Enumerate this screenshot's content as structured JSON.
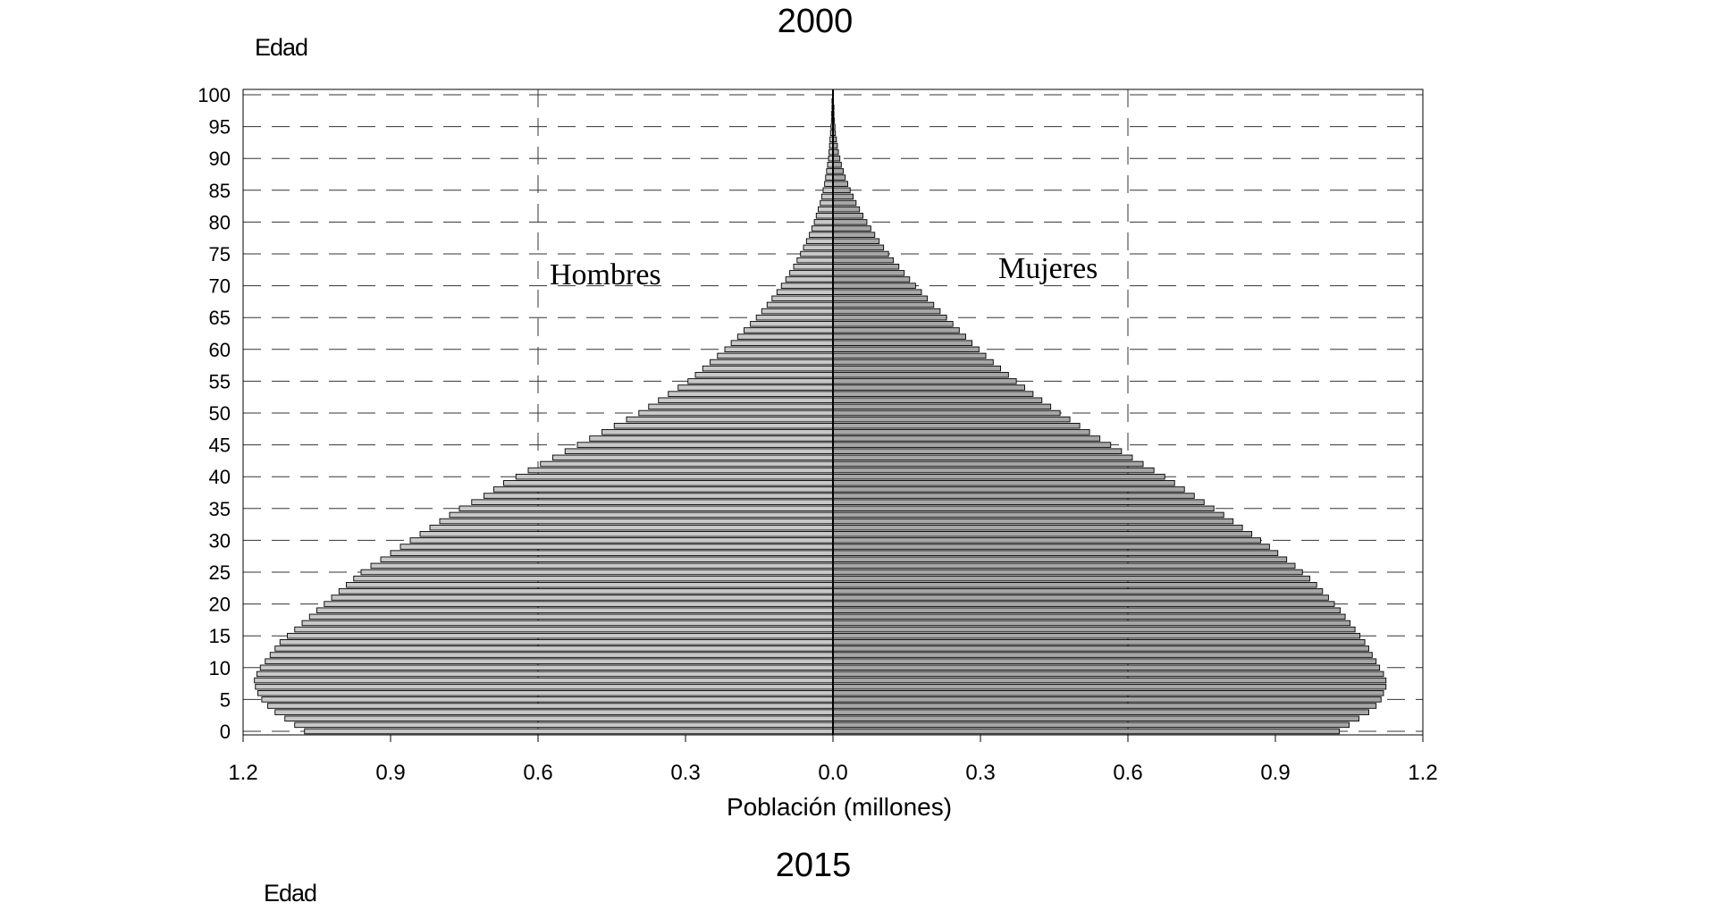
{
  "chart_data": [
    {
      "type": "bar",
      "orientation": "horizontal-population-pyramid",
      "title": "2000",
      "ylabel": "Edad",
      "xlabel": "Población (millones)",
      "series": [
        {
          "name": "Hombres",
          "color": "#c8c8c8",
          "side": "left",
          "ages": [
            0,
            1,
            2,
            3,
            4,
            5,
            6,
            7,
            8,
            9,
            10,
            11,
            12,
            13,
            14,
            15,
            16,
            17,
            18,
            19,
            20,
            21,
            22,
            23,
            24,
            25,
            26,
            27,
            28,
            29,
            30,
            31,
            32,
            33,
            34,
            35,
            36,
            37,
            38,
            39,
            40,
            41,
            42,
            43,
            44,
            45,
            46,
            47,
            48,
            49,
            50,
            51,
            52,
            53,
            54,
            55,
            56,
            57,
            58,
            59,
            60,
            61,
            62,
            63,
            64,
            65,
            66,
            67,
            68,
            69,
            70,
            71,
            72,
            73,
            74,
            75,
            76,
            77,
            78,
            79,
            80,
            81,
            82,
            83,
            84,
            85,
            86,
            87,
            88,
            89,
            90,
            91,
            92,
            93,
            94,
            95,
            96,
            97,
            98,
            99,
            100
          ],
          "values": [
            1.075,
            1.095,
            1.115,
            1.135,
            1.15,
            1.162,
            1.17,
            1.175,
            1.177,
            1.172,
            1.165,
            1.155,
            1.145,
            1.135,
            1.125,
            1.11,
            1.095,
            1.08,
            1.065,
            1.05,
            1.035,
            1.02,
            1.005,
            0.99,
            0.975,
            0.96,
            0.94,
            0.92,
            0.9,
            0.88,
            0.86,
            0.84,
            0.82,
            0.8,
            0.78,
            0.76,
            0.735,
            0.71,
            0.69,
            0.67,
            0.645,
            0.62,
            0.595,
            0.57,
            0.545,
            0.52,
            0.495,
            0.47,
            0.445,
            0.42,
            0.395,
            0.375,
            0.355,
            0.335,
            0.315,
            0.295,
            0.28,
            0.265,
            0.25,
            0.235,
            0.22,
            0.207,
            0.194,
            0.181,
            0.168,
            0.156,
            0.145,
            0.134,
            0.124,
            0.114,
            0.105,
            0.096,
            0.088,
            0.08,
            0.073,
            0.066,
            0.06,
            0.054,
            0.048,
            0.043,
            0.038,
            0.034,
            0.03,
            0.026,
            0.023,
            0.02,
            0.017,
            0.015,
            0.013,
            0.011,
            0.009,
            0.008,
            0.007,
            0.006,
            0.005,
            0.004,
            0.003,
            0.003,
            0.002,
            0.002,
            0.001
          ]
        },
        {
          "name": "Mujeres",
          "color": "#a6a6a6",
          "side": "right",
          "ages": [
            0,
            1,
            2,
            3,
            4,
            5,
            6,
            7,
            8,
            9,
            10,
            11,
            12,
            13,
            14,
            15,
            16,
            17,
            18,
            19,
            20,
            21,
            22,
            23,
            24,
            25,
            26,
            27,
            28,
            29,
            30,
            31,
            32,
            33,
            34,
            35,
            36,
            37,
            38,
            39,
            40,
            41,
            42,
            43,
            44,
            45,
            46,
            47,
            48,
            49,
            50,
            51,
            52,
            53,
            54,
            55,
            56,
            57,
            58,
            59,
            60,
            61,
            62,
            63,
            64,
            65,
            66,
            67,
            68,
            69,
            70,
            71,
            72,
            73,
            74,
            75,
            76,
            77,
            78,
            79,
            80,
            81,
            82,
            83,
            84,
            85,
            86,
            87,
            88,
            89,
            90,
            91,
            92,
            93,
            94,
            95,
            96,
            97,
            98,
            99,
            100
          ],
          "values": [
            1.03,
            1.05,
            1.07,
            1.09,
            1.105,
            1.115,
            1.12,
            1.125,
            1.125,
            1.12,
            1.112,
            1.105,
            1.097,
            1.09,
            1.082,
            1.072,
            1.062,
            1.052,
            1.042,
            1.032,
            1.02,
            1.008,
            0.996,
            0.984,
            0.97,
            0.955,
            0.94,
            0.923,
            0.905,
            0.888,
            0.87,
            0.852,
            0.833,
            0.814,
            0.795,
            0.775,
            0.755,
            0.735,
            0.715,
            0.695,
            0.675,
            0.653,
            0.631,
            0.609,
            0.587,
            0.565,
            0.543,
            0.522,
            0.502,
            0.482,
            0.462,
            0.443,
            0.425,
            0.407,
            0.39,
            0.373,
            0.357,
            0.341,
            0.326,
            0.311,
            0.297,
            0.283,
            0.27,
            0.257,
            0.244,
            0.231,
            0.218,
            0.205,
            0.192,
            0.18,
            0.168,
            0.156,
            0.145,
            0.134,
            0.123,
            0.113,
            0.103,
            0.094,
            0.085,
            0.077,
            0.069,
            0.061,
            0.054,
            0.047,
            0.041,
            0.035,
            0.03,
            0.025,
            0.021,
            0.017,
            0.014,
            0.011,
            0.009,
            0.007,
            0.005,
            0.004,
            0.003,
            0.002,
            0.002,
            0.001,
            0.001
          ]
        }
      ],
      "yticks": [
        0,
        5,
        10,
        15,
        20,
        25,
        30,
        35,
        40,
        45,
        50,
        55,
        60,
        65,
        70,
        75,
        80,
        85,
        90,
        95,
        100
      ],
      "xticks": [
        "1.2",
        "0.9",
        "0.6",
        "0.3",
        "0.0",
        "0.3",
        "0.6",
        "0.9",
        "1.2"
      ],
      "xlim": [
        -1.2,
        1.2
      ],
      "ylim": [
        0,
        100
      ],
      "grid": "dashed horizontal at every 5 years, dashed vertical at 0.6",
      "annotations": [
        "Hombres",
        "Mujeres"
      ]
    },
    {
      "type": "bar",
      "title": "2015",
      "ylabel": "Edad"
    }
  ]
}
